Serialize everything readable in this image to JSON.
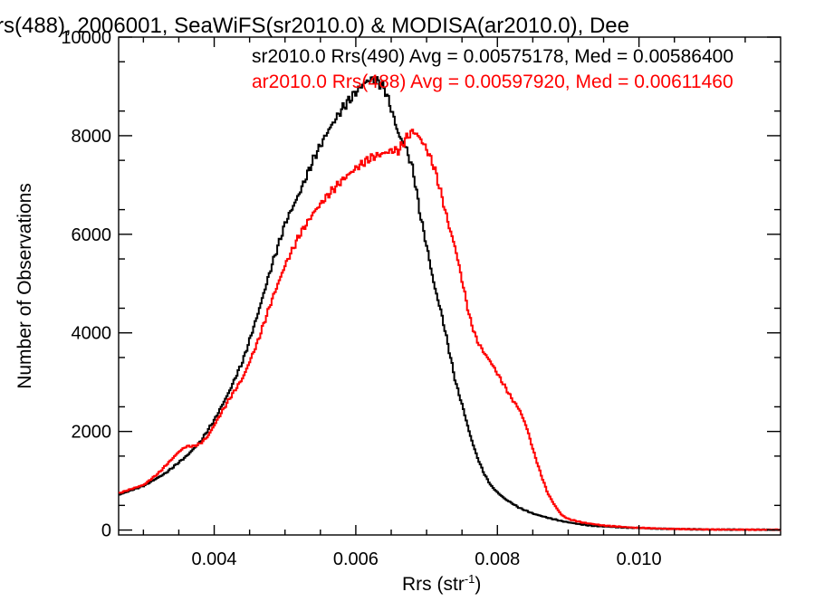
{
  "chart_data": {
    "type": "line",
    "step": true,
    "title": "rs(488), 2006001, SeaWiFS(sr2010.0) & MODISA(ar2010.0), Dee",
    "xlabel": "Rrs (str",
    "xlabel_sup": "-1",
    "xlabel_close": ")",
    "ylabel": "Number of Observations",
    "xlim": [
      0.00265,
      0.012
    ],
    "ylim": [
      -100,
      10000
    ],
    "xticks": [
      0.004,
      0.006,
      0.008,
      0.01
    ],
    "xtick_labels": [
      "0.004",
      "0.006",
      "0.008",
      "0.010"
    ],
    "yticks": [
      0,
      2000,
      4000,
      6000,
      8000,
      10000
    ],
    "ytick_labels": [
      "0",
      "2000",
      "4000",
      "6000",
      "8000",
      "10000"
    ],
    "grid": false,
    "legend_position": "top-right",
    "series": [
      {
        "name": "sr2010.0 Rrs(490) Avg = 0.00575178, Med = 0.00586400",
        "color": "#000000",
        "points": [
          [
            0.00265,
            720
          ],
          [
            0.003,
            900
          ],
          [
            0.0033,
            1150
          ],
          [
            0.0036,
            1500
          ],
          [
            0.0038,
            1800
          ],
          [
            0.004,
            2250
          ],
          [
            0.0042,
            2800
          ],
          [
            0.0044,
            3450
          ],
          [
            0.0046,
            4350
          ],
          [
            0.0048,
            5350
          ],
          [
            0.005,
            6250
          ],
          [
            0.0052,
            6850
          ],
          [
            0.0054,
            7550
          ],
          [
            0.0056,
            8100
          ],
          [
            0.0058,
            8550
          ],
          [
            0.006,
            8900
          ],
          [
            0.0061,
            9050
          ],
          [
            0.0062,
            9150
          ],
          [
            0.0063,
            9100
          ],
          [
            0.0064,
            8950
          ],
          [
            0.0065,
            8500
          ],
          [
            0.0066,
            8000
          ],
          [
            0.0067,
            7750
          ],
          [
            0.0068,
            7300
          ],
          [
            0.0069,
            6400
          ],
          [
            0.007,
            5700
          ],
          [
            0.0071,
            4950
          ],
          [
            0.0072,
            4400
          ],
          [
            0.0073,
            3700
          ],
          [
            0.0074,
            3000
          ],
          [
            0.0075,
            2500
          ],
          [
            0.0076,
            1950
          ],
          [
            0.0077,
            1500
          ],
          [
            0.0078,
            1150
          ],
          [
            0.0079,
            900
          ],
          [
            0.008,
            750
          ],
          [
            0.0081,
            630
          ],
          [
            0.0082,
            540
          ],
          [
            0.0083,
            450
          ],
          [
            0.0085,
            330
          ],
          [
            0.0087,
            250
          ],
          [
            0.0089,
            180
          ],
          [
            0.0091,
            130
          ],
          [
            0.0093,
            90
          ],
          [
            0.0095,
            70
          ],
          [
            0.0098,
            50
          ],
          [
            0.0102,
            30
          ],
          [
            0.0106,
            20
          ],
          [
            0.011,
            10
          ],
          [
            0.012,
            5
          ]
        ]
      },
      {
        "name": "ar2010.0 Rrs(488) Avg = 0.00597920, Med = 0.00611460",
        "color": "#ff0000",
        "points": [
          [
            0.00265,
            750
          ],
          [
            0.003,
            920
          ],
          [
            0.0032,
            1150
          ],
          [
            0.0034,
            1450
          ],
          [
            0.0035,
            1600
          ],
          [
            0.0036,
            1700
          ],
          [
            0.0037,
            1700
          ],
          [
            0.0038,
            1760
          ],
          [
            0.0039,
            1900
          ],
          [
            0.004,
            2150
          ],
          [
            0.0042,
            2650
          ],
          [
            0.0044,
            3100
          ],
          [
            0.0046,
            3800
          ],
          [
            0.0048,
            4650
          ],
          [
            0.005,
            5400
          ],
          [
            0.0052,
            6000
          ],
          [
            0.0054,
            6450
          ],
          [
            0.0056,
            6800
          ],
          [
            0.0058,
            7100
          ],
          [
            0.006,
            7350
          ],
          [
            0.0062,
            7550
          ],
          [
            0.0064,
            7650
          ],
          [
            0.0065,
            7700
          ],
          [
            0.0066,
            7700
          ],
          [
            0.0067,
            7950
          ],
          [
            0.0068,
            8100
          ],
          [
            0.0069,
            7950
          ],
          [
            0.007,
            7700
          ],
          [
            0.0071,
            7350
          ],
          [
            0.0072,
            6800
          ],
          [
            0.0073,
            6200
          ],
          [
            0.0074,
            5700
          ],
          [
            0.0075,
            5000
          ],
          [
            0.0076,
            4300
          ],
          [
            0.0077,
            3850
          ],
          [
            0.0078,
            3600
          ],
          [
            0.0079,
            3400
          ],
          [
            0.008,
            3150
          ],
          [
            0.0081,
            2900
          ],
          [
            0.0082,
            2650
          ],
          [
            0.0083,
            2450
          ],
          [
            0.0084,
            2100
          ],
          [
            0.0085,
            1600
          ],
          [
            0.0086,
            1150
          ],
          [
            0.0087,
            750
          ],
          [
            0.0088,
            500
          ],
          [
            0.0089,
            300
          ],
          [
            0.009,
            220
          ],
          [
            0.0092,
            150
          ],
          [
            0.0095,
            90
          ],
          [
            0.0099,
            50
          ],
          [
            0.0104,
            25
          ],
          [
            0.011,
            10
          ],
          [
            0.012,
            5
          ]
        ]
      }
    ]
  }
}
